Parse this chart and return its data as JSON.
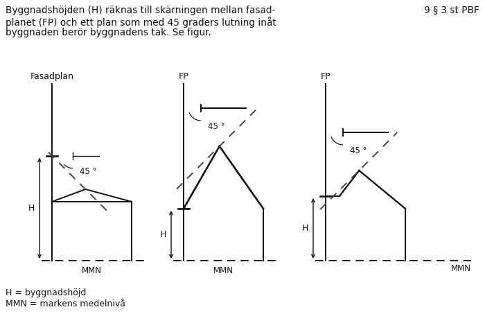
{
  "title_line1": "Byggnadshöjden (H) räknas till skärningen mellan fasad-",
  "title_line2": "planet (FP) och ett plan som med 45 graders lutning inåt",
  "title_line3": "byggnaden berör byggnadens tak. Se figur.",
  "ref_text": "9 § 3 st PBF",
  "footer1": "H = byggnadshöjd",
  "footer2": "MMN = markens medelnivå",
  "bg_color": "#ffffff",
  "line_color": "#111111",
  "dashed_color": "#444444",
  "text_color": "#111111",
  "title_fontsize": 9.8,
  "label_fontsize": 9.0,
  "small_fontsize": 8.5,
  "lw": 1.4
}
